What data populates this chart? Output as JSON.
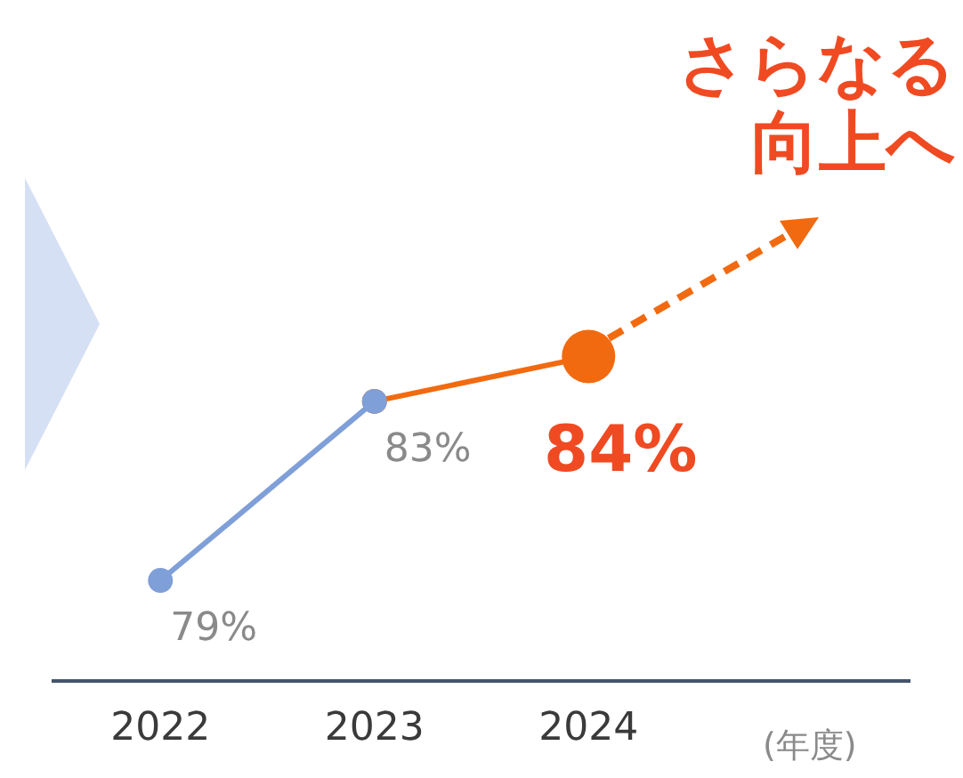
{
  "chart_data": {
    "type": "line",
    "categories": [
      "2022",
      "2023",
      "2024",
      null
    ],
    "xlabel": "(年度)",
    "series": [
      {
        "color": "#7f9fd8",
        "values": [
          79,
          83,
          null,
          null
        ],
        "value_labels": [
          "79%",
          "83%",
          null,
          null
        ]
      },
      {
        "color": "#f26a10",
        "values": [
          null,
          83,
          84,
          null
        ],
        "value_labels": [
          null,
          null,
          "84%",
          null
        ]
      }
    ],
    "annotations": [
      "さらなる向上へ"
    ],
    "marker": "circle",
    "line_style": "solid",
    "grid": false,
    "legend": false,
    "tick_labels": "x"
  }
}
